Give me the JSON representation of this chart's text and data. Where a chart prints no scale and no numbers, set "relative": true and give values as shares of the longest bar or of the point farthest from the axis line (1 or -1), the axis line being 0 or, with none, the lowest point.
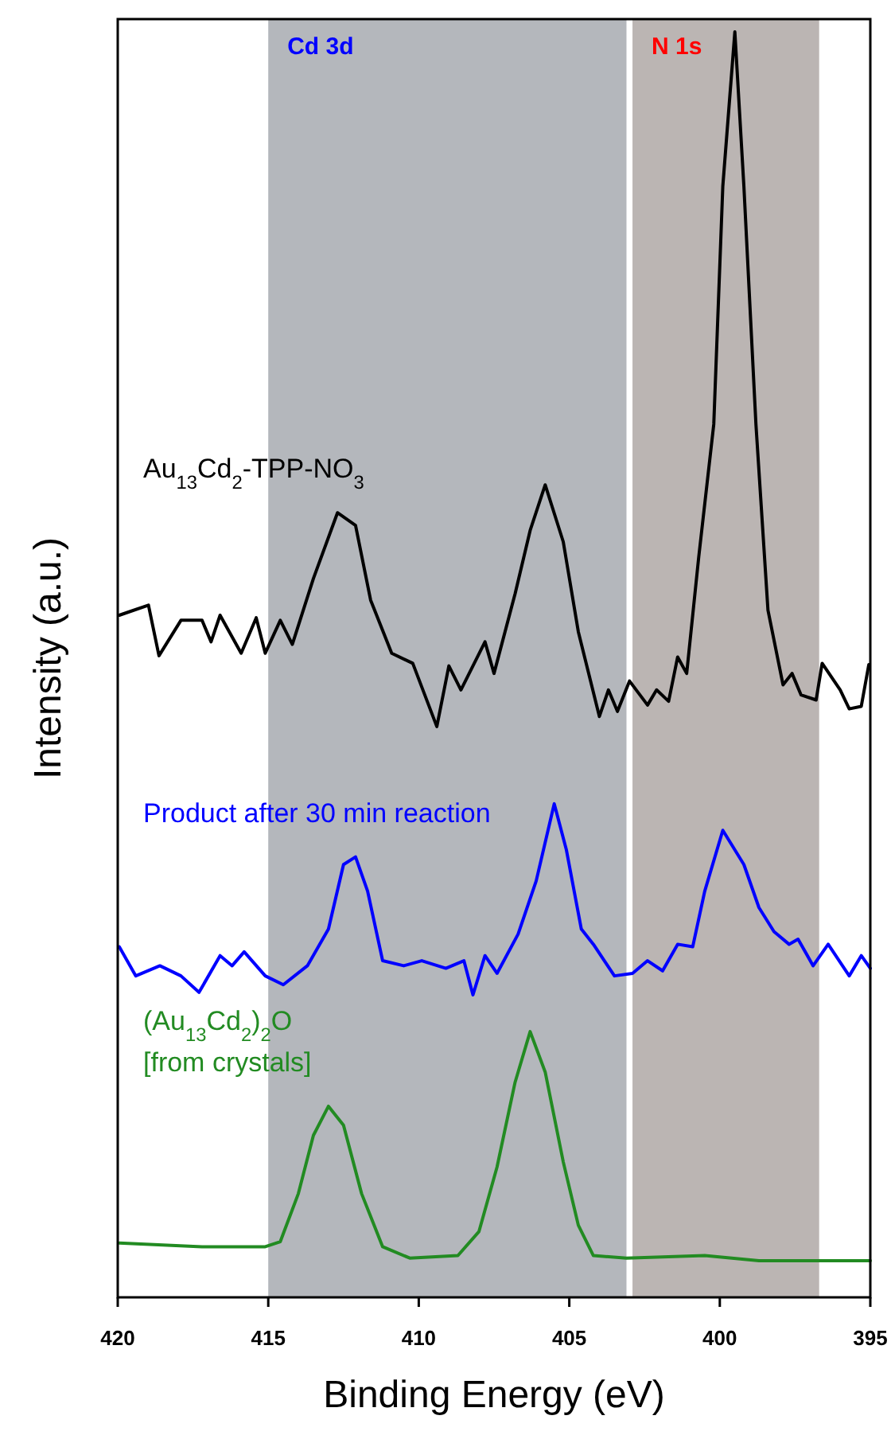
{
  "chart_data": {
    "type": "line",
    "relative": true,
    "xlabel": "Binding Energy (eV)",
    "ylabel": "Intensity (a.u.)",
    "xlim": [
      420,
      395
    ],
    "xticks": [
      420,
      415,
      410,
      405,
      400,
      395
    ],
    "grid": false,
    "marker": "none",
    "line_style": "solid",
    "bands": [
      {
        "axis": "x",
        "from": 415,
        "to": 403.1,
        "label": "Cd 3d",
        "color": "#b4b7bc"
      },
      {
        "axis": "x",
        "from": 402.9,
        "to": 396.7,
        "label": "N 1s",
        "color": "#bbb5b3"
      }
    ],
    "series": [
      {
        "name": "Au$_{13}$Cd$_{2}$-TPP-NO$_{3}$",
        "color": "#000000",
        "x": [
          419.95,
          418.98,
          418.63,
          417.9,
          417.2,
          416.9,
          416.6,
          415.9,
          415.4,
          415.1,
          414.6,
          414.2,
          413.5,
          412.7,
          412.1,
          411.6,
          410.9,
          410.2,
          409.4,
          409.0,
          408.6,
          407.8,
          407.5,
          406.8,
          406.3,
          405.8,
          405.2,
          404.7,
          404.0,
          403.7,
          403.4,
          403.0,
          402.4,
          402.1,
          401.7,
          401.4,
          401.1,
          400.7,
          400.2,
          399.9,
          399.5,
          399.2,
          398.8,
          398.4,
          397.9,
          397.6,
          397.3,
          396.8,
          396.6,
          396.0,
          395.7,
          395.3,
          395.05
        ],
        "values": [
          0.539,
          0.547,
          0.507,
          0.535,
          0.535,
          0.518,
          0.539,
          0.509,
          0.537,
          0.509,
          0.535,
          0.516,
          0.568,
          0.62,
          0.61,
          0.551,
          0.509,
          0.501,
          0.451,
          0.499,
          0.48,
          0.518,
          0.493,
          0.556,
          0.606,
          0.642,
          0.597,
          0.526,
          0.459,
          0.48,
          0.463,
          0.487,
          0.468,
          0.48,
          0.471,
          0.506,
          0.493,
          0.585,
          0.69,
          0.878,
          1.0,
          0.878,
          0.69,
          0.543,
          0.484,
          0.493,
          0.476,
          0.472,
          0.501,
          0.48,
          0.465,
          0.467,
          0.5
        ]
      },
      {
        "name": "Product after 30 min reaction",
        "color": "#0000ff",
        "x": [
          419.95,
          419.4,
          418.6,
          417.9,
          417.3,
          416.6,
          416.2,
          415.8,
          415.1,
          414.5,
          413.7,
          413.0,
          412.5,
          412.1,
          411.7,
          411.2,
          410.5,
          409.9,
          409.1,
          408.5,
          408.2,
          407.8,
          407.4,
          406.7,
          406.1,
          405.5,
          405.1,
          404.6,
          404.2,
          403.5,
          402.9,
          402.4,
          401.9,
          401.4,
          400.9,
          400.5,
          399.9,
          399.2,
          398.7,
          398.2,
          397.7,
          397.4,
          396.9,
          396.4,
          395.7,
          395.3,
          395.0
        ],
        "values": [
          0.277,
          0.254,
          0.262,
          0.254,
          0.241,
          0.27,
          0.262,
          0.273,
          0.254,
          0.247,
          0.262,
          0.291,
          0.342,
          0.348,
          0.321,
          0.266,
          0.262,
          0.266,
          0.26,
          0.266,
          0.239,
          0.27,
          0.256,
          0.287,
          0.329,
          0.39,
          0.354,
          0.291,
          0.279,
          0.254,
          0.256,
          0.266,
          0.258,
          0.279,
          0.277,
          0.321,
          0.369,
          0.342,
          0.308,
          0.289,
          0.279,
          0.283,
          0.262,
          0.279,
          0.254,
          0.27,
          0.26
        ]
      },
      {
        "name": "(Au$_{13}$Cd$_{2}$)$_{2}$O\n[from crystals]",
        "color": "#228b22",
        "x": [
          419.95,
          417.2,
          415.1,
          414.6,
          414.0,
          413.5,
          413.0,
          412.5,
          411.9,
          411.2,
          410.3,
          408.7,
          408.0,
          407.4,
          406.8,
          406.3,
          405.8,
          405.2,
          404.7,
          404.2,
          403.1,
          400.5,
          398.7,
          395.0
        ],
        "values": [
          0.043,
          0.04,
          0.04,
          0.044,
          0.082,
          0.128,
          0.151,
          0.136,
          0.082,
          0.04,
          0.031,
          0.033,
          0.052,
          0.103,
          0.17,
          0.21,
          0.178,
          0.107,
          0.057,
          0.033,
          0.031,
          0.033,
          0.029,
          0.029
        ]
      }
    ]
  }
}
